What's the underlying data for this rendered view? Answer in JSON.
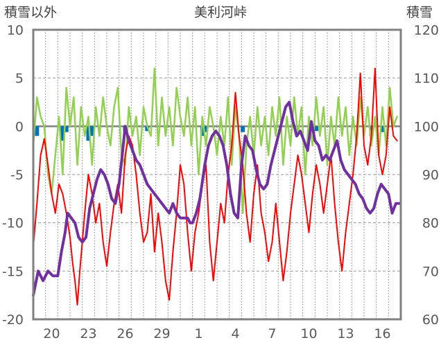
{
  "chart_data": {
    "type": "line",
    "title": "美利河峠",
    "left_axis_label": "積雪以外",
    "right_axis_label": "積雪",
    "left_ylim": [
      -20,
      10
    ],
    "left_ticks": [
      "10",
      "5",
      "0",
      "-5",
      "-10",
      "-15",
      "-20"
    ],
    "right_ylim": [
      60,
      120
    ],
    "right_ticks": [
      "120",
      "110",
      "100",
      "90",
      "80",
      "70",
      "60"
    ],
    "x_tick_labels": [
      "20",
      "23",
      "26",
      "29",
      "1",
      "4",
      "7",
      "10",
      "13",
      "16"
    ],
    "x_tick_positions_day": [
      1.5,
      4.5,
      7.5,
      10.5,
      13.5,
      16.5,
      19.5,
      22.5,
      25.5,
      28.5
    ],
    "x_range_days": [
      0,
      30
    ],
    "grid": {
      "horizontal": "dashed",
      "vertical": "dotted"
    },
    "colors": {
      "temperature": "#ff0000",
      "snowfall": "#92d050",
      "precipitation": "#0070c0",
      "snow_depth": "#7030a0",
      "frame": "#808080"
    },
    "series": [
      {
        "axis": "left",
        "style": "line",
        "color": "#ff0000",
        "points": [
          [
            0.0,
            -12.5
          ],
          [
            0.3,
            -8
          ],
          [
            0.6,
            -3
          ],
          [
            0.9,
            -1.3
          ],
          [
            1.2,
            -4
          ],
          [
            1.5,
            -7
          ],
          [
            1.8,
            -9
          ],
          [
            2.1,
            -6
          ],
          [
            2.4,
            -7
          ],
          [
            2.7,
            -9
          ],
          [
            3.0,
            -11.5
          ],
          [
            3.2,
            -14
          ],
          [
            3.4,
            -16
          ],
          [
            3.6,
            -18.5
          ],
          [
            3.8,
            -15
          ],
          [
            4.0,
            -12
          ],
          [
            4.2,
            -9
          ],
          [
            4.5,
            -5
          ],
          [
            4.8,
            -7
          ],
          [
            5.1,
            -10
          ],
          [
            5.4,
            -8
          ],
          [
            5.7,
            -12
          ],
          [
            6.0,
            -14.5
          ],
          [
            6.3,
            -11
          ],
          [
            6.6,
            -8
          ],
          [
            6.9,
            -6
          ],
          [
            7.2,
            -9
          ],
          [
            7.5,
            -3
          ],
          [
            7.8,
            -1
          ],
          [
            8.1,
            -2
          ],
          [
            8.4,
            -5
          ],
          [
            8.7,
            -9
          ],
          [
            9.0,
            -12
          ],
          [
            9.3,
            -11
          ],
          [
            9.6,
            -7
          ],
          [
            9.9,
            -13
          ],
          [
            10.2,
            -9
          ],
          [
            10.5,
            -12
          ],
          [
            10.8,
            -16
          ],
          [
            11.1,
            -18
          ],
          [
            11.4,
            -13
          ],
          [
            11.7,
            -9
          ],
          [
            12.0,
            -4
          ],
          [
            12.3,
            -6
          ],
          [
            12.6,
            -11
          ],
          [
            12.9,
            -15
          ],
          [
            13.2,
            -11
          ],
          [
            13.5,
            -9
          ],
          [
            13.8,
            -6
          ],
          [
            14.1,
            -4
          ],
          [
            14.4,
            -12
          ],
          [
            14.7,
            -16
          ],
          [
            15.0,
            -12
          ],
          [
            15.3,
            -8
          ],
          [
            15.6,
            -10
          ],
          [
            15.9,
            -5
          ],
          [
            16.2,
            -2
          ],
          [
            16.5,
            3.5
          ],
          [
            16.8,
            -1
          ],
          [
            17.1,
            -4
          ],
          [
            17.4,
            -9
          ],
          [
            17.7,
            -12
          ],
          [
            18.0,
            -7
          ],
          [
            18.3,
            -4
          ],
          [
            18.6,
            -9
          ],
          [
            18.9,
            -11
          ],
          [
            19.2,
            -14
          ],
          [
            19.5,
            -12
          ],
          [
            19.8,
            -8
          ],
          [
            20.1,
            -12
          ],
          [
            20.4,
            -16
          ],
          [
            20.7,
            -13
          ],
          [
            21.0,
            -9
          ],
          [
            21.3,
            -6
          ],
          [
            21.6,
            -3
          ],
          [
            21.9,
            -5
          ],
          [
            22.2,
            -8
          ],
          [
            22.5,
            -11
          ],
          [
            22.8,
            -7
          ],
          [
            23.1,
            -4
          ],
          [
            23.4,
            -6
          ],
          [
            23.7,
            -9
          ],
          [
            24.0,
            -6
          ],
          [
            24.3,
            -3
          ],
          [
            24.6,
            -8
          ],
          [
            24.9,
            -12
          ],
          [
            25.2,
            -15
          ],
          [
            25.5,
            -11
          ],
          [
            25.8,
            -8
          ],
          [
            26.1,
            -5
          ],
          [
            26.4,
            -1
          ],
          [
            26.7,
            5.5
          ],
          [
            27.0,
            -2
          ],
          [
            27.3,
            -4
          ],
          [
            27.6,
            -1
          ],
          [
            27.9,
            6
          ],
          [
            28.2,
            -3
          ],
          [
            28.5,
            -5
          ],
          [
            28.8,
            -3
          ],
          [
            29.1,
            2
          ],
          [
            29.4,
            -1
          ],
          [
            29.7,
            -1.5
          ]
        ]
      },
      {
        "axis": "left",
        "style": "line",
        "color": "#92d050",
        "points": [
          [
            0.0,
            -2
          ],
          [
            0.3,
            3
          ],
          [
            0.6,
            1
          ],
          [
            0.9,
            0
          ],
          [
            1.2,
            -5
          ],
          [
            1.5,
            -7
          ],
          [
            1.8,
            -3
          ],
          [
            2.1,
            1
          ],
          [
            2.4,
            -5
          ],
          [
            2.7,
            4
          ],
          [
            3.0,
            0
          ],
          [
            3.3,
            3
          ],
          [
            3.6,
            -4
          ],
          [
            3.9,
            2
          ],
          [
            4.2,
            -1
          ],
          [
            4.5,
            1
          ],
          [
            4.8,
            -4
          ],
          [
            5.1,
            2
          ],
          [
            5.4,
            -1
          ],
          [
            5.7,
            3
          ],
          [
            6.0,
            0
          ],
          [
            6.3,
            -2
          ],
          [
            6.6,
            2
          ],
          [
            6.9,
            4
          ],
          [
            7.2,
            -3
          ],
          [
            7.5,
            -4
          ],
          [
            7.8,
            2
          ],
          [
            8.1,
            -1
          ],
          [
            8.4,
            1
          ],
          [
            8.7,
            -3
          ],
          [
            9.0,
            2
          ],
          [
            9.3,
            0
          ],
          [
            9.6,
            -1
          ],
          [
            9.9,
            6
          ],
          [
            10.2,
            -2
          ],
          [
            10.5,
            3
          ],
          [
            10.8,
            -1
          ],
          [
            11.1,
            2
          ],
          [
            11.4,
            -2
          ],
          [
            11.7,
            4
          ],
          [
            12.0,
            1
          ],
          [
            12.3,
            -1
          ],
          [
            12.6,
            3
          ],
          [
            12.9,
            -2
          ],
          [
            13.2,
            2
          ],
          [
            13.5,
            -5
          ],
          [
            13.8,
            1
          ],
          [
            14.1,
            -2
          ],
          [
            14.4,
            2
          ],
          [
            14.7,
            0
          ],
          [
            15.0,
            -3
          ],
          [
            15.3,
            1
          ],
          [
            15.6,
            -2
          ],
          [
            15.9,
            3
          ],
          [
            16.2,
            -4
          ],
          [
            16.5,
            2
          ],
          [
            16.8,
            -1
          ],
          [
            17.1,
            -9
          ],
          [
            17.4,
            -2
          ],
          [
            17.7,
            1
          ],
          [
            18.0,
            -3
          ],
          [
            18.3,
            2
          ],
          [
            18.6,
            -2
          ],
          [
            18.9,
            1
          ],
          [
            19.2,
            -3
          ],
          [
            19.5,
            2
          ],
          [
            19.8,
            -1
          ],
          [
            20.1,
            3
          ],
          [
            20.4,
            -4
          ],
          [
            20.7,
            1
          ],
          [
            21.0,
            -2
          ],
          [
            21.3,
            3
          ],
          [
            21.6,
            -1
          ],
          [
            21.9,
            2
          ],
          [
            22.2,
            -5
          ],
          [
            22.5,
            1
          ],
          [
            22.8,
            -2
          ],
          [
            23.1,
            3
          ],
          [
            23.4,
            -1
          ],
          [
            23.7,
            2
          ],
          [
            24.0,
            -4
          ],
          [
            24.3,
            1
          ],
          [
            24.6,
            -2
          ],
          [
            24.9,
            3
          ],
          [
            25.2,
            -1
          ],
          [
            25.5,
            2
          ],
          [
            25.8,
            -3
          ],
          [
            26.1,
            1
          ],
          [
            26.4,
            -2
          ],
          [
            26.7,
            3
          ],
          [
            27.0,
            -1
          ],
          [
            27.3,
            2
          ],
          [
            27.6,
            -2
          ],
          [
            27.9,
            1
          ],
          [
            28.2,
            -3
          ],
          [
            28.5,
            2
          ],
          [
            28.8,
            -2
          ],
          [
            29.1,
            4
          ],
          [
            29.4,
            0
          ],
          [
            29.7,
            1
          ]
        ]
      },
      {
        "axis": "left",
        "style": "bar",
        "color": "#0070c0",
        "points": [
          [
            0.3,
            -1
          ],
          [
            2.4,
            -1.5
          ],
          [
            2.7,
            -0.6
          ],
          [
            4.5,
            -1.5
          ],
          [
            4.8,
            -1
          ],
          [
            7.5,
            -0.6
          ],
          [
            9.3,
            -0.5
          ],
          [
            13.8,
            -1
          ],
          [
            14.1,
            -0.6
          ],
          [
            17.1,
            -0.6
          ],
          [
            23.1,
            -0.5
          ],
          [
            27.6,
            -1
          ],
          [
            28.5,
            -0.6
          ]
        ]
      },
      {
        "axis": "right",
        "style": "line",
        "color": "#7030a0",
        "points": [
          [
            0.0,
            65
          ],
          [
            0.4,
            70
          ],
          [
            0.8,
            68
          ],
          [
            1.2,
            70
          ],
          [
            1.6,
            69
          ],
          [
            2.0,
            69
          ],
          [
            2.3,
            74
          ],
          [
            2.6,
            78
          ],
          [
            2.8,
            82
          ],
          [
            3.1,
            81
          ],
          [
            3.4,
            80
          ],
          [
            3.7,
            77
          ],
          [
            4.0,
            76
          ],
          [
            4.3,
            77
          ],
          [
            4.6,
            83
          ],
          [
            4.9,
            86
          ],
          [
            5.2,
            89
          ],
          [
            5.5,
            91
          ],
          [
            5.8,
            90
          ],
          [
            6.1,
            88
          ],
          [
            6.4,
            85
          ],
          [
            6.7,
            84
          ],
          [
            7.0,
            88
          ],
          [
            7.3,
            95
          ],
          [
            7.5,
            100
          ],
          [
            7.8,
            97
          ],
          [
            8.1,
            95
          ],
          [
            8.4,
            93
          ],
          [
            8.7,
            92
          ],
          [
            9.0,
            90
          ],
          [
            9.3,
            88
          ],
          [
            9.6,
            87
          ],
          [
            9.9,
            86
          ],
          [
            10.2,
            85
          ],
          [
            10.5,
            84
          ],
          [
            10.8,
            83
          ],
          [
            11.1,
            82
          ],
          [
            11.4,
            84
          ],
          [
            11.7,
            82
          ],
          [
            12.0,
            81
          ],
          [
            12.3,
            81
          ],
          [
            12.6,
            81
          ],
          [
            12.8,
            80
          ],
          [
            13.0,
            80
          ],
          [
            13.3,
            82
          ],
          [
            13.6,
            85
          ],
          [
            14.0,
            92
          ],
          [
            14.3,
            96
          ],
          [
            14.6,
            98
          ],
          [
            14.9,
            99
          ],
          [
            15.2,
            98
          ],
          [
            15.5,
            96
          ],
          [
            15.8,
            92
          ],
          [
            16.1,
            86
          ],
          [
            16.4,
            82
          ],
          [
            16.7,
            81
          ],
          [
            17.0,
            92
          ],
          [
            17.3,
            98
          ],
          [
            17.6,
            96
          ],
          [
            17.9,
            95
          ],
          [
            18.2,
            91
          ],
          [
            18.5,
            88
          ],
          [
            18.8,
            87
          ],
          [
            19.1,
            88
          ],
          [
            19.4,
            92
          ],
          [
            19.7,
            95
          ],
          [
            20.0,
            98
          ],
          [
            20.3,
            101
          ],
          [
            20.6,
            104
          ],
          [
            20.9,
            105
          ],
          [
            21.2,
            101
          ],
          [
            21.5,
            98
          ],
          [
            21.8,
            99
          ],
          [
            22.1,
            97
          ],
          [
            22.4,
            95
          ],
          [
            22.7,
            101
          ],
          [
            23.0,
            97
          ],
          [
            23.3,
            96
          ],
          [
            23.6,
            93
          ],
          [
            23.9,
            94
          ],
          [
            24.2,
            93
          ],
          [
            24.5,
            95
          ],
          [
            24.8,
            97
          ],
          [
            25.1,
            93
          ],
          [
            25.4,
            91
          ],
          [
            25.7,
            90
          ],
          [
            26.0,
            89
          ],
          [
            26.3,
            88
          ],
          [
            26.6,
            86
          ],
          [
            26.9,
            85
          ],
          [
            27.2,
            83
          ],
          [
            27.5,
            82
          ],
          [
            27.8,
            83
          ],
          [
            28.1,
            86
          ],
          [
            28.4,
            88
          ],
          [
            28.7,
            87
          ],
          [
            29.0,
            86
          ],
          [
            29.3,
            82
          ],
          [
            29.6,
            84
          ],
          [
            29.9,
            84
          ]
        ]
      }
    ]
  }
}
